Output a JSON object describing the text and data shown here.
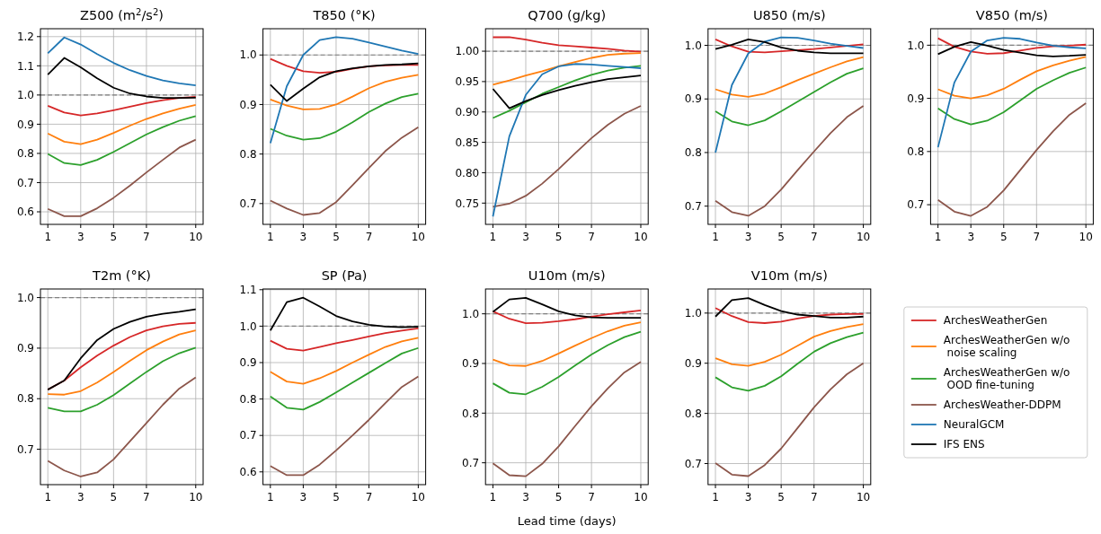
{
  "chart_data": [
    {
      "type": "line",
      "title": "Z500 (m$^{2}$/s$^{2}$)",
      "x": [
        1,
        2,
        3,
        4,
        5,
        6,
        7,
        8,
        9,
        10
      ],
      "xlim": [
        0.55,
        10.45
      ],
      "xticks": [
        1,
        3,
        5,
        7,
        10
      ],
      "ylim": [
        0.557,
        1.227
      ],
      "yticks": [
        0.6,
        0.7,
        0.8,
        0.9,
        {
          "value": 1,
          "label": "1.0"
        },
        1.1,
        1.2
      ],
      "grid": true,
      "ref_lines": [
        {
          "axis": "y",
          "value": 1,
          "color": "#808080",
          "line_style": "dashed"
        }
      ],
      "series": [
        {
          "color": "#d62728",
          "values": [
            0.963,
            0.94,
            0.93,
            0.937,
            0.948,
            0.96,
            0.972,
            0.982,
            0.99,
            0.994
          ]
        },
        {
          "color": "#ff7f0e",
          "values": [
            0.868,
            0.84,
            0.832,
            0.847,
            0.87,
            0.895,
            0.918,
            0.937,
            0.953,
            0.966
          ]
        },
        {
          "color": "#2ca02c",
          "values": [
            0.798,
            0.767,
            0.76,
            0.778,
            0.805,
            0.835,
            0.865,
            0.89,
            0.912,
            0.928
          ]
        },
        {
          "color": "#8c564b",
          "values": [
            0.61,
            0.585,
            0.585,
            0.612,
            0.648,
            0.69,
            0.735,
            0.778,
            0.82,
            0.847
          ]
        },
        {
          "color": "#1f77b4",
          "values": [
            1.143,
            1.197,
            1.173,
            1.14,
            1.11,
            1.085,
            1.065,
            1.05,
            1.04,
            1.033
          ]
        },
        {
          "color": "#000000",
          "values": [
            1.07,
            1.127,
            1.095,
            1.057,
            1.025,
            1.005,
            0.995,
            0.99,
            0.99,
            0.991
          ]
        }
      ]
    },
    {
      "type": "line",
      "title": "T850 (°K)",
      "x": [
        1,
        2,
        3,
        4,
        5,
        6,
        7,
        8,
        9,
        10
      ],
      "xlim": [
        0.55,
        10.45
      ],
      "xticks": [
        1,
        3,
        5,
        7,
        10
      ],
      "ylim": [
        0.658,
        1.053
      ],
      "yticks": [
        0.7,
        0.8,
        0.9,
        {
          "value": 1,
          "label": "1.0"
        }
      ],
      "grid": true,
      "ref_lines": [
        {
          "axis": "y",
          "value": 1,
          "color": "#808080",
          "line_style": "dashed"
        }
      ],
      "series": [
        {
          "color": "#d62728",
          "values": [
            0.992,
            0.978,
            0.967,
            0.964,
            0.966,
            0.972,
            0.977,
            0.979,
            0.98,
            0.98
          ]
        },
        {
          "color": "#ff7f0e",
          "values": [
            0.91,
            0.898,
            0.89,
            0.891,
            0.9,
            0.916,
            0.933,
            0.946,
            0.954,
            0.96
          ]
        },
        {
          "color": "#2ca02c",
          "values": [
            0.851,
            0.837,
            0.829,
            0.832,
            0.845,
            0.864,
            0.885,
            0.902,
            0.915,
            0.922
          ]
        },
        {
          "color": "#8c564b",
          "values": [
            0.706,
            0.69,
            0.677,
            0.681,
            0.703,
            0.737,
            0.772,
            0.806,
            0.833,
            0.854
          ]
        },
        {
          "color": "#1f77b4",
          "values": [
            0.822,
            0.937,
            1.0,
            1.03,
            1.036,
            1.033,
            1.025,
            1.017,
            1.009,
            1.002
          ]
        },
        {
          "color": "#000000",
          "values": [
            0.94,
            0.907,
            0.932,
            0.955,
            0.967,
            0.973,
            0.977,
            0.98,
            0.981,
            0.983
          ]
        }
      ]
    },
    {
      "type": "line",
      "title": "Q700 (g/kg)",
      "x": [
        1,
        2,
        3,
        4,
        5,
        6,
        7,
        8,
        9,
        10
      ],
      "xlim": [
        0.55,
        10.45
      ],
      "xticks": [
        1,
        3,
        5,
        7,
        10
      ],
      "ylim": [
        0.715,
        1.037
      ],
      "yticks": [
        {
          "value": 0.75,
          "label": "0.75"
        },
        {
          "value": 0.8,
          "label": "0.80"
        },
        {
          "value": 0.85,
          "label": "0.85"
        },
        {
          "value": 0.9,
          "label": "0.90"
        },
        {
          "value": 0.95,
          "label": "0.95"
        },
        {
          "value": 1.0,
          "label": "1.00"
        }
      ],
      "grid": true,
      "ref_lines": [
        {
          "axis": "y",
          "value": 1,
          "color": "#808080",
          "line_style": "dashed"
        }
      ],
      "series": [
        {
          "color": "#d62728",
          "values": [
            1.023,
            1.023,
            1.019,
            1.014,
            1.01,
            1.008,
            1.006,
            1.004,
            1.001,
            0.999
          ]
        },
        {
          "color": "#ff7f0e",
          "values": [
            0.945,
            0.952,
            0.96,
            0.967,
            0.975,
            0.982,
            0.989,
            0.994,
            0.996,
            0.997
          ]
        },
        {
          "color": "#2ca02c",
          "values": [
            0.89,
            0.902,
            0.916,
            0.93,
            0.941,
            0.952,
            0.961,
            0.968,
            0.973,
            0.976
          ]
        },
        {
          "color": "#8c564b",
          "values": [
            0.744,
            0.749,
            0.762,
            0.782,
            0.806,
            0.832,
            0.857,
            0.879,
            0.897,
            0.91
          ]
        },
        {
          "color": "#1f77b4",
          "values": [
            0.728,
            0.86,
            0.928,
            0.962,
            0.975,
            0.979,
            0.978,
            0.976,
            0.974,
            0.972
          ]
        },
        {
          "color": "#000000",
          "values": [
            0.938,
            0.906,
            0.918,
            0.928,
            0.936,
            0.943,
            0.949,
            0.954,
            0.957,
            0.96
          ]
        }
      ]
    },
    {
      "type": "line",
      "title": "U850 (m/s)",
      "x": [
        1,
        2,
        3,
        4,
        5,
        6,
        7,
        8,
        9,
        10
      ],
      "xlim": [
        0.55,
        10.45
      ],
      "xticks": [
        1,
        3,
        5,
        7,
        10
      ],
      "ylim": [
        0.666,
        1.031
      ],
      "yticks": [
        0.7,
        0.8,
        0.9,
        {
          "value": 1,
          "label": "1.0"
        }
      ],
      "grid": true,
      "ref_lines": [
        {
          "axis": "y",
          "value": 1,
          "color": "#808080",
          "line_style": "dashed"
        }
      ],
      "series": [
        {
          "color": "#d62728",
          "values": [
            1.011,
            0.998,
            0.988,
            0.987,
            0.989,
            0.991,
            0.993,
            0.996,
            0.999,
            1.002
          ]
        },
        {
          "color": "#ff7f0e",
          "values": [
            0.918,
            0.908,
            0.904,
            0.91,
            0.922,
            0.935,
            0.947,
            0.959,
            0.97,
            0.978
          ]
        },
        {
          "color": "#2ca02c",
          "values": [
            0.877,
            0.858,
            0.851,
            0.86,
            0.877,
            0.895,
            0.913,
            0.931,
            0.947,
            0.957
          ]
        },
        {
          "color": "#8c564b",
          "values": [
            0.71,
            0.689,
            0.682,
            0.7,
            0.731,
            0.767,
            0.802,
            0.836,
            0.866,
            0.887
          ]
        },
        {
          "color": "#1f77b4",
          "values": [
            0.8,
            0.926,
            0.985,
            1.007,
            1.015,
            1.014,
            1.009,
            1.003,
            0.999,
            0.995
          ]
        },
        {
          "color": "#000000",
          "values": [
            0.993,
            1.001,
            1.011,
            1.006,
            0.996,
            0.99,
            0.987,
            0.985,
            0.985,
            0.985
          ]
        }
      ]
    },
    {
      "type": "line",
      "title": "V850 (m/s)",
      "x": [
        1,
        2,
        3,
        4,
        5,
        6,
        7,
        8,
        9,
        10
      ],
      "xlim": [
        0.55,
        10.45
      ],
      "xticks": [
        1,
        3,
        5,
        7,
        10
      ],
      "ylim": [
        0.663,
        1.031
      ],
      "yticks": [
        0.7,
        0.8,
        0.9,
        {
          "value": 1,
          "label": "1.0"
        }
      ],
      "grid": true,
      "ref_lines": [
        {
          "axis": "y",
          "value": 1,
          "color": "#808080",
          "line_style": "dashed"
        }
      ],
      "series": [
        {
          "color": "#d62728",
          "values": [
            1.013,
            0.997,
            0.988,
            0.984,
            0.985,
            0.99,
            0.995,
            0.998,
            0.999,
            1.001
          ]
        },
        {
          "color": "#ff7f0e",
          "values": [
            0.917,
            0.905,
            0.9,
            0.906,
            0.918,
            0.935,
            0.951,
            0.962,
            0.971,
            0.978
          ]
        },
        {
          "color": "#2ca02c",
          "values": [
            0.881,
            0.861,
            0.851,
            0.858,
            0.874,
            0.896,
            0.918,
            0.934,
            0.948,
            0.958
          ]
        },
        {
          "color": "#8c564b",
          "values": [
            0.709,
            0.687,
            0.679,
            0.696,
            0.727,
            0.765,
            0.803,
            0.838,
            0.869,
            0.891
          ]
        },
        {
          "color": "#1f77b4",
          "values": [
            0.808,
            0.93,
            0.988,
            1.009,
            1.014,
            1.012,
            1.005,
            0.999,
            0.996,
            0.994
          ]
        },
        {
          "color": "#000000",
          "values": [
            0.983,
            0.997,
            1.006,
            0.999,
            0.991,
            0.986,
            0.981,
            0.979,
            0.98,
            0.982
          ]
        }
      ]
    },
    {
      "type": "line",
      "title": "T2m (°K)",
      "x": [
        1,
        2,
        3,
        4,
        5,
        6,
        7,
        8,
        9,
        10
      ],
      "xlim": [
        0.55,
        10.45
      ],
      "xticks": [
        1,
        3,
        5,
        7,
        10
      ],
      "ylim": [
        0.63,
        1.017
      ],
      "yticks": [
        0.7,
        0.8,
        0.9,
        {
          "value": 1,
          "label": "1.0"
        }
      ],
      "grid": true,
      "ref_lines": [
        {
          "axis": "y",
          "value": 1,
          "color": "#808080",
          "line_style": "dashed"
        }
      ],
      "series": [
        {
          "color": "#d62728",
          "values": [
            0.818,
            0.836,
            0.862,
            0.885,
            0.905,
            0.922,
            0.935,
            0.943,
            0.948,
            0.95
          ]
        },
        {
          "color": "#ff7f0e",
          "values": [
            0.809,
            0.808,
            0.815,
            0.832,
            0.853,
            0.875,
            0.896,
            0.913,
            0.927,
            0.935
          ]
        },
        {
          "color": "#2ca02c",
          "values": [
            0.782,
            0.775,
            0.775,
            0.788,
            0.807,
            0.83,
            0.853,
            0.874,
            0.89,
            0.901
          ]
        },
        {
          "color": "#8c564b",
          "values": [
            0.677,
            0.658,
            0.646,
            0.654,
            0.68,
            0.716,
            0.752,
            0.788,
            0.82,
            0.842
          ]
        },
        {
          "color": "#000000",
          "values": [
            0.818,
            0.836,
            0.88,
            0.916,
            0.938,
            0.952,
            0.962,
            0.968,
            0.972,
            0.977
          ]
        }
      ]
    },
    {
      "type": "line",
      "title": "SP (Pa)",
      "x": [
        1,
        2,
        3,
        4,
        5,
        6,
        7,
        8,
        9,
        10
      ],
      "xlim": [
        0.55,
        10.45
      ],
      "xticks": [
        1,
        3,
        5,
        7,
        10
      ],
      "ylim": [
        0.565,
        1.102
      ],
      "yticks": [
        0.6,
        0.7,
        0.8,
        0.9,
        {
          "value": 1,
          "label": "1.0"
        },
        1.1
      ],
      "grid": true,
      "ref_lines": [
        {
          "axis": "y",
          "value": 1,
          "color": "#808080",
          "line_style": "dashed"
        }
      ],
      "series": [
        {
          "color": "#d62728",
          "values": [
            0.96,
            0.938,
            0.933,
            0.943,
            0.953,
            0.962,
            0.972,
            0.981,
            0.988,
            0.994
          ]
        },
        {
          "color": "#ff7f0e",
          "values": [
            0.875,
            0.848,
            0.842,
            0.857,
            0.877,
            0.9,
            0.922,
            0.943,
            0.958,
            0.968
          ]
        },
        {
          "color": "#2ca02c",
          "values": [
            0.807,
            0.776,
            0.771,
            0.792,
            0.818,
            0.845,
            0.872,
            0.899,
            0.925,
            0.94
          ]
        },
        {
          "color": "#8c564b",
          "values": [
            0.616,
            0.591,
            0.591,
            0.62,
            0.659,
            0.7,
            0.743,
            0.789,
            0.833,
            0.862
          ]
        },
        {
          "color": "#000000",
          "values": [
            0.988,
            1.066,
            1.078,
            1.054,
            1.028,
            1.013,
            1.004,
            0.999,
            0.997,
            0.998
          ]
        }
      ]
    },
    {
      "type": "line",
      "title": "U10m (m/s)",
      "xlabel": "Lead time (days)",
      "x": [
        1,
        2,
        3,
        4,
        5,
        6,
        7,
        8,
        9,
        10
      ],
      "xlim": [
        0.55,
        10.45
      ],
      "xticks": [
        1,
        3,
        5,
        7,
        10
      ],
      "ylim": [
        0.656,
        1.05
      ],
      "yticks": [
        0.7,
        0.8,
        0.9,
        {
          "value": 1,
          "label": "1.0"
        }
      ],
      "grid": true,
      "ref_lines": [
        {
          "axis": "y",
          "value": 1,
          "color": "#808080",
          "line_style": "dashed"
        }
      ],
      "series": [
        {
          "color": "#d62728",
          "values": [
            1.005,
            0.99,
            0.981,
            0.982,
            0.985,
            0.989,
            0.994,
            0.999,
            1.003,
            1.007
          ]
        },
        {
          "color": "#ff7f0e",
          "values": [
            0.908,
            0.896,
            0.895,
            0.905,
            0.92,
            0.936,
            0.951,
            0.965,
            0.976,
            0.983
          ]
        },
        {
          "color": "#2ca02c",
          "values": [
            0.86,
            0.841,
            0.838,
            0.853,
            0.873,
            0.896,
            0.918,
            0.937,
            0.953,
            0.964
          ]
        },
        {
          "color": "#8c564b",
          "values": [
            0.699,
            0.675,
            0.673,
            0.698,
            0.733,
            0.774,
            0.814,
            0.85,
            0.882,
            0.903
          ]
        },
        {
          "color": "#000000",
          "values": [
            1.004,
            1.029,
            1.032,
            1.019,
            1.005,
            0.997,
            0.993,
            0.992,
            0.992,
            0.992
          ]
        }
      ]
    },
    {
      "type": "line",
      "title": "V10m (m/s)",
      "x": [
        1,
        2,
        3,
        4,
        5,
        6,
        7,
        8,
        9,
        10
      ],
      "xlim": [
        0.55,
        10.45
      ],
      "xticks": [
        1,
        3,
        5,
        7,
        10
      ],
      "ylim": [
        0.658,
        1.048
      ],
      "yticks": [
        0.7,
        0.8,
        0.9,
        {
          "value": 1,
          "label": "1.0"
        }
      ],
      "grid": true,
      "legend": "right",
      "ref_lines": [
        {
          "axis": "y",
          "value": 1,
          "color": "#808080",
          "line_style": "dashed"
        }
      ],
      "series": [
        {
          "name": "ArchesWeatherGen",
          "color": "#d62728",
          "values": [
            1.01,
            0.994,
            0.982,
            0.98,
            0.983,
            0.989,
            0.994,
            0.997,
            0.998,
            0.998
          ]
        },
        {
          "name": "ArchesWeatherGen w/o\n noise scaling",
          "color": "#ff7f0e",
          "values": [
            0.91,
            0.898,
            0.895,
            0.903,
            0.917,
            0.935,
            0.953,
            0.964,
            0.972,
            0.978
          ]
        },
        {
          "name": "ArchesWeatherGen w/o\n OOD fine-tuning",
          "color": "#2ca02c",
          "values": [
            0.872,
            0.852,
            0.845,
            0.855,
            0.874,
            0.899,
            0.923,
            0.94,
            0.952,
            0.961
          ]
        },
        {
          "name": "ArchesWeather-DDPM",
          "color": "#8c564b",
          "values": [
            0.701,
            0.678,
            0.675,
            0.697,
            0.73,
            0.771,
            0.812,
            0.848,
            0.878,
            0.9
          ]
        },
        {
          "name": "NeuralGCM",
          "color": "#1f77b4",
          "values": [
            null,
            null,
            null,
            null,
            null,
            null,
            null,
            null,
            null,
            null
          ]
        },
        {
          "name": "IFS ENS",
          "color": "#000000",
          "values": [
            0.993,
            1.026,
            1.03,
            1.016,
            1.004,
            0.997,
            0.994,
            0.991,
            0.991,
            0.993
          ]
        }
      ]
    }
  ]
}
